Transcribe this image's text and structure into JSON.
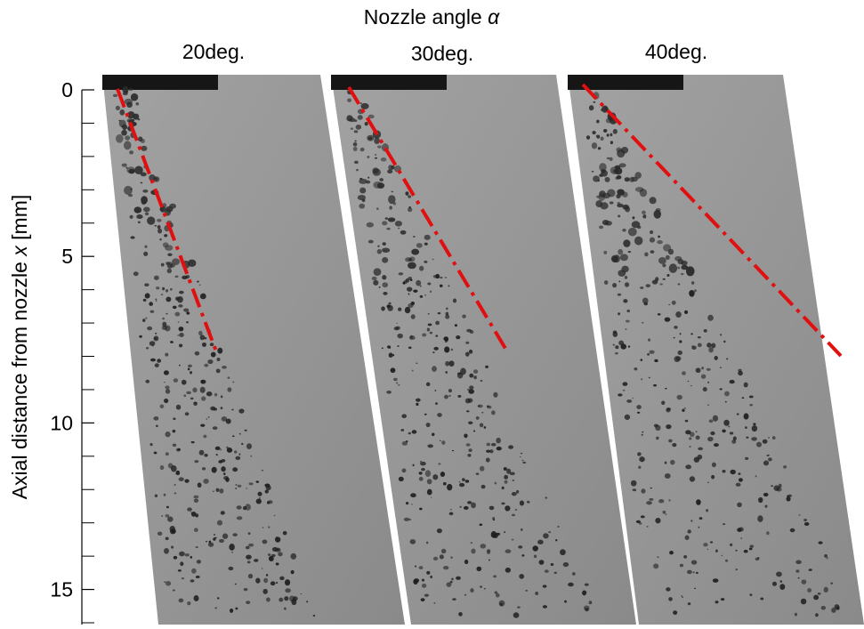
{
  "figure": {
    "title": {
      "text": "Nozzle angle",
      "symbol": "α"
    },
    "panels": [
      {
        "label": "20deg."
      },
      {
        "label": "30deg."
      },
      {
        "label": "40deg."
      }
    ],
    "y_axis": {
      "label": "Axial distance from nozzle",
      "symbol": "x",
      "unit": "[mm]",
      "lim": [
        0,
        16
      ],
      "ticks": [
        0,
        5,
        10,
        15
      ],
      "minor_ticks": [
        1,
        2,
        3,
        4,
        6,
        7,
        8,
        9,
        11,
        12,
        13,
        14,
        16
      ]
    }
  }
}
